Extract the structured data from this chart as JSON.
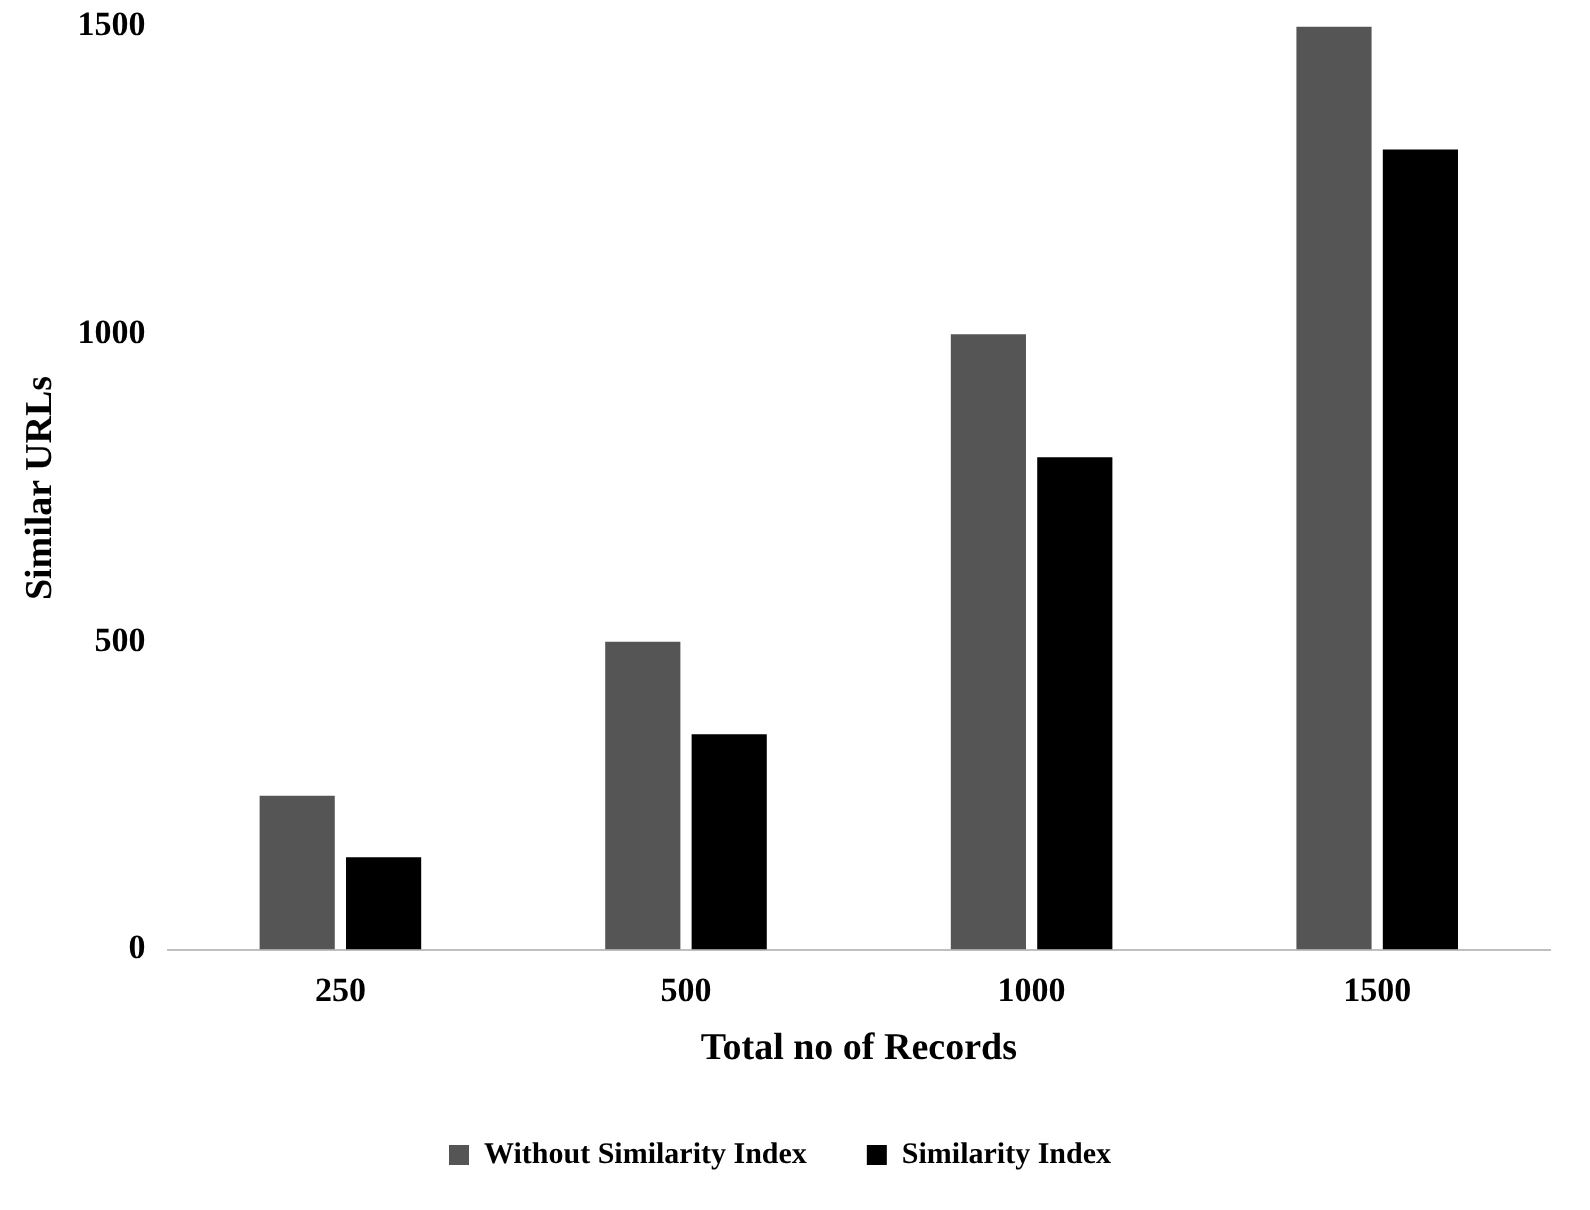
{
  "chart_data": {
    "type": "bar",
    "xlabel": "Total no of Records",
    "ylabel": "Similar URLs",
    "categories": [
      "250",
      "500",
      "1000",
      "1500"
    ],
    "series": [
      {
        "name": "Without Similarity Index",
        "color": "#555555",
        "values": [
          250,
          500,
          1000,
          1500
        ]
      },
      {
        "name": "Similarity Index",
        "color": "#000000",
        "values": [
          150,
          350,
          800,
          1300
        ]
      }
    ],
    "ylim": [
      0,
      1500
    ],
    "yticks": [
      0,
      500,
      1000,
      1500
    ],
    "grid": false,
    "legend": "bottom"
  }
}
